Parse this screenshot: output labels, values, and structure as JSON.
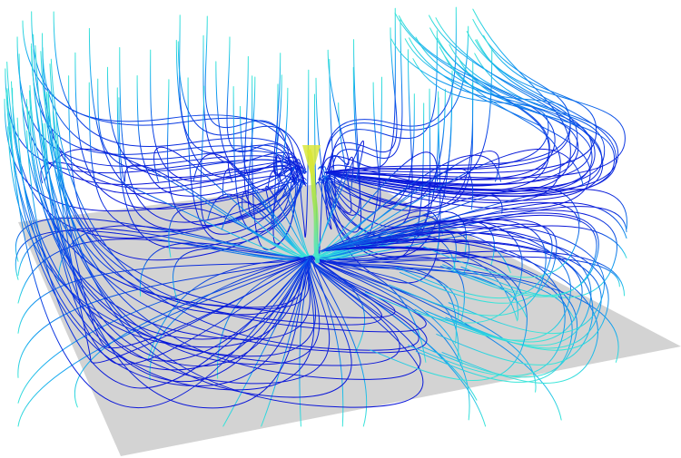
{
  "scene": {
    "background_color": "#ffffff",
    "ground_plane_color": "#d3d3d3",
    "colormap": [
      "#0a14d8",
      "#0a46e6",
      "#0a8af0",
      "#12c8f0",
      "#39e6d8",
      "#9ae650",
      "#e6e61a"
    ],
    "description_icon": "streamline-visualization"
  }
}
